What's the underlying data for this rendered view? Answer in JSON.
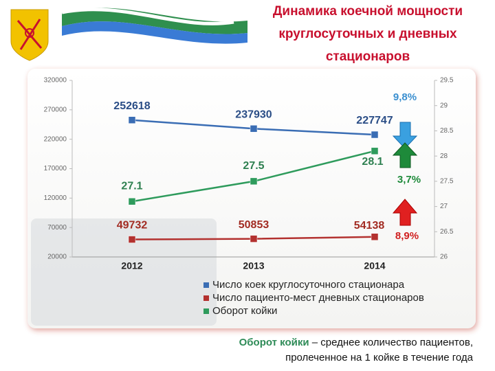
{
  "chart_data": {
    "type": "line",
    "title": "Динамика коечной мощности круглосуточных и дневных стационаров",
    "categories": [
      "2012",
      "2013",
      "2014"
    ],
    "series": [
      {
        "name": "Число коек круглосуточного стационара",
        "color": "#3a6db4",
        "values": [
          252618,
          237930,
          227747
        ]
      },
      {
        "name": "Число пациенто-мест дневных стационаров",
        "color": "#b3312f",
        "values": [
          49732,
          50853,
          54138
        ]
      },
      {
        "name": "Оборот койки",
        "color": "#2e9b5c",
        "values": [
          27.1,
          27.5,
          28.1
        ],
        "axis": "y2"
      }
    ],
    "ylim": [
      20000,
      320000
    ],
    "yticks": [
      20000,
      70000,
      120000,
      170000,
      220000,
      270000,
      320000
    ],
    "y2lim": [
      26,
      29.5
    ],
    "y2ticks": [
      26,
      26.5,
      27,
      27.5,
      28,
      28.5,
      29,
      29.5
    ],
    "annotations": [
      "9,8%",
      "3,7%",
      "8,9%"
    ],
    "footnote": {
      "term": "Оборот койки",
      "text": "– среднее количество пациентов, пролеченное на 1 койке в течение года"
    }
  }
}
